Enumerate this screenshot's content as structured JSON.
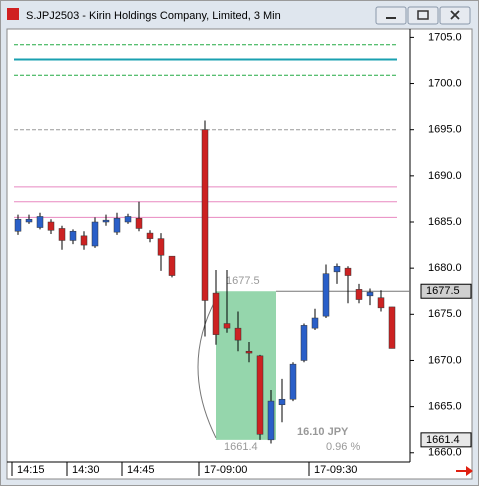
{
  "chart_data": {
    "type": "candlestick",
    "title": "S.JPJ2503 - Kirin Holdings Company, Limited, 3 Min",
    "categories": [
      "14:15",
      null,
      null,
      null,
      null,
      "14:30",
      null,
      null,
      null,
      null,
      "14:45",
      null,
      null,
      null,
      null,
      "17-09:00",
      null,
      null,
      null,
      null,
      null,
      null,
      null,
      null,
      null,
      "17-09:30",
      null,
      null,
      null,
      null,
      null,
      null,
      null
    ],
    "open": [
      1684.0,
      1685.0,
      1684.4,
      1685.0,
      1684.3,
      1683.0,
      1683.5,
      1682.4,
      1685.0,
      1683.9,
      1685.0,
      1685.4,
      1683.8,
      1683.2,
      1681.3,
      1695.0,
      1677.3,
      1674.0,
      1673.5,
      1671.0,
      1670.5,
      1661.4,
      1665.2,
      1665.8,
      1670.0,
      1673.5,
      1674.8,
      1679.6,
      1680.0,
      1677.7,
      1677.0,
      1676.8,
      1675.8
    ],
    "high": [
      1685.8,
      1685.8,
      1686.0,
      1685.3,
      1684.6,
      1684.2,
      1684.0,
      1685.5,
      1685.8,
      1686.0,
      1685.9,
      1687.2,
      1684.1,
      1683.8,
      1681.3,
      1696.0,
      1679.8,
      1679.8,
      1675.3,
      1672.0,
      1670.6,
      1666.8,
      1668.0,
      1669.8,
      1674.0,
      1675.6,
      1680.4,
      1680.5,
      1680.2,
      1678.3,
      1677.8,
      1677.6,
      1675.8
    ],
    "low": [
      1683.6,
      1684.8,
      1684.2,
      1683.7,
      1682.0,
      1682.6,
      1682.0,
      1682.2,
      1684.6,
      1683.6,
      1684.8,
      1684.0,
      1682.8,
      1679.7,
      1679.0,
      1672.6,
      1671.7,
      1673.0,
      1671.0,
      1669.8,
      1661.4,
      1661.0,
      1663.3,
      1665.6,
      1669.8,
      1673.3,
      1674.6,
      1678.3,
      1676.2,
      1676.2,
      1676.0,
      1675.3,
      1671.3
    ],
    "close": [
      1685.3,
      1685.3,
      1685.6,
      1684.1,
      1683.0,
      1684.0,
      1682.5,
      1685.0,
      1685.2,
      1685.4,
      1685.6,
      1684.3,
      1683.2,
      1681.4,
      1679.2,
      1676.5,
      1672.8,
      1673.5,
      1672.2,
      1670.8,
      1662.0,
      1665.6,
      1665.8,
      1669.6,
      1673.8,
      1674.6,
      1679.4,
      1680.2,
      1679.2,
      1676.6,
      1677.4,
      1675.7,
      1671.3
    ],
    "up_color": "#2a5fc8",
    "down_color": "#cc2222",
    "ylim": [
      1659.0,
      1705.8
    ],
    "yticks": [
      {
        "value": 1705,
        "label": "1705.0"
      },
      {
        "value": 1700,
        "label": "1700.0"
      },
      {
        "value": 1695,
        "label": "1695.0"
      },
      {
        "value": 1690,
        "label": "1690.0"
      },
      {
        "value": 1685,
        "label": "1685.0"
      },
      {
        "value": 1680,
        "label": "1680.0"
      },
      {
        "value": 1675,
        "label": "1675.0"
      },
      {
        "value": 1670,
        "label": "1670.0"
      },
      {
        "value": 1665,
        "label": "1665.0"
      },
      {
        "value": 1660,
        "label": "1660.0"
      }
    ],
    "reference_lines": [
      {
        "value": 1704.2,
        "color": "#22aa44",
        "dashed": true
      },
      {
        "value": 1702.6,
        "color": "#1aa0b0",
        "dashed": false
      },
      {
        "value": 1700.9,
        "color": "#22aa44",
        "dashed": true
      },
      {
        "value": 1695.0,
        "color": "#999999",
        "dashed": true
      },
      {
        "value": 1688.8,
        "color": "#e888c0",
        "dashed": false
      },
      {
        "value": 1687.2,
        "color": "#e888c0",
        "dashed": false
      },
      {
        "value": 1685.5,
        "color": "#e888c0",
        "dashed": false
      }
    ],
    "price_tags": [
      1677.5,
      1661.4
    ],
    "measure": {
      "top": 1677.5,
      "bottom": 1661.4,
      "change": "16.10  JPY",
      "percent": "0.96 %"
    }
  }
}
